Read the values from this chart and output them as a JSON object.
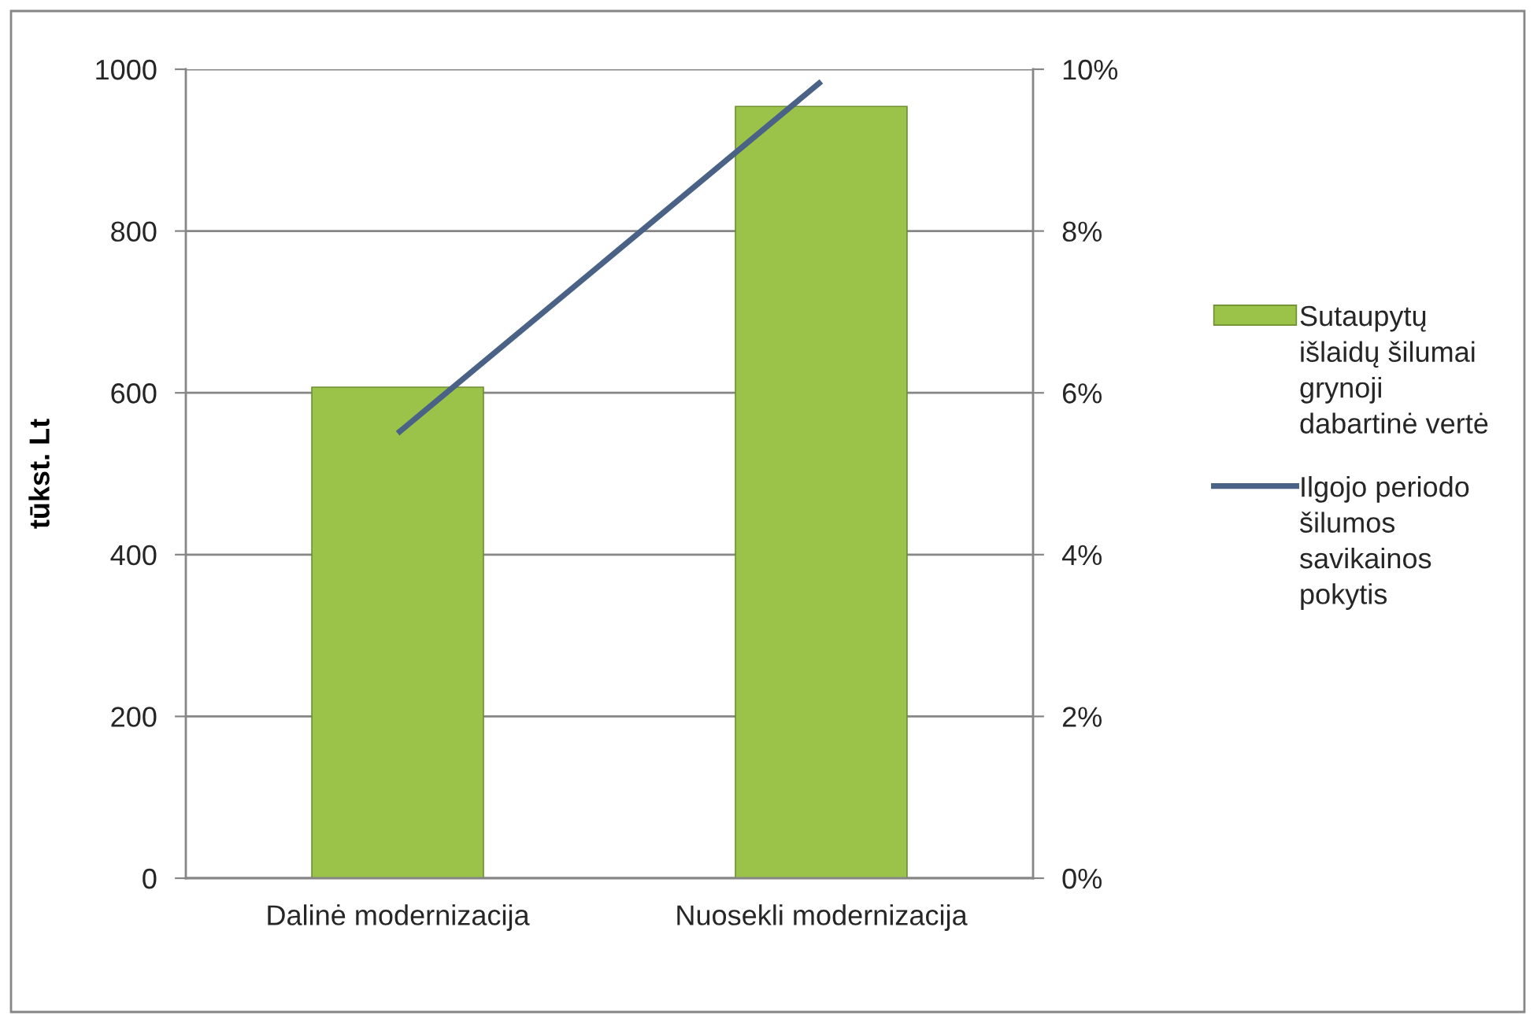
{
  "chart_data": {
    "type": "bar",
    "categories": [
      "Dalinė modernizacija",
      "Nuosekli modernizacija"
    ],
    "series": [
      {
        "name": "Sutaupytų\nišlaidų šilumai\ngrynoji\ndabartinė vertė",
        "color": "#9bc34a",
        "values": [
          607,
          954
        ]
      },
      {
        "name": "Ilgojo periodo\nšilumos\nsavikainos\npokytis",
        "type": "line",
        "axis": "y2",
        "color": "#4a6286",
        "values": [
          5.5,
          9.85
        ]
      }
    ],
    "ylabel": "tūkst. Lt",
    "ylim": [
      0,
      1000
    ],
    "yticks": [
      0,
      200,
      400,
      600,
      800,
      1000
    ],
    "y2lim": [
      0,
      10
    ],
    "y2ticks": [
      {
        "value": 0,
        "label": "0%"
      },
      {
        "value": 2,
        "label": "2%"
      },
      {
        "value": 4,
        "label": "4%"
      },
      {
        "value": 6,
        "label": "6%"
      },
      {
        "value": 8,
        "label": "8%"
      },
      {
        "value": 10,
        "label": "10%"
      }
    ],
    "grid": "y",
    "legend": "right"
  }
}
